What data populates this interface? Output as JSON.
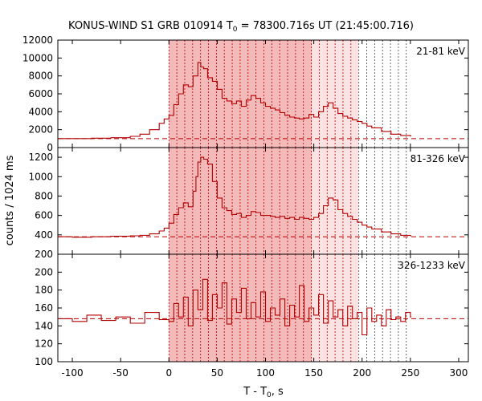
{
  "title": {
    "main": "KONUS-WIND S1 GRB 010914 T",
    "sub": "0",
    "rest": " = 78300.716s UT (21:45:00.716)"
  },
  "ylabel": "counts / 1024 ms",
  "xlabel": {
    "main": "T - T",
    "sub": "0",
    "rest": ", s"
  },
  "colors": {
    "curve": "#b30000",
    "shade_dark": "#f4b9b9",
    "shade_light": "#fbe3e3",
    "dotted": "#b30000",
    "dotted_late": "#444444"
  },
  "chart_data": [
    {
      "type": "line",
      "label": "21-81 keV",
      "x_ticks": [
        "-100",
        "-50",
        "0",
        "50",
        "100",
        "150",
        "200",
        "250",
        "300"
      ],
      "xlim": [
        -115,
        310
      ],
      "ylim": [
        0,
        12000
      ],
      "y_ticks": [
        "0",
        "2000",
        "4000",
        "6000",
        "8000",
        "10000",
        "12000"
      ],
      "background": 1000,
      "x": [
        -115,
        -100,
        -80,
        -60,
        -40,
        -30,
        -20,
        -10,
        -5,
        0,
        5,
        10,
        15,
        20,
        25,
        30,
        33,
        36,
        40,
        45,
        50,
        55,
        60,
        65,
        70,
        75,
        80,
        85,
        90,
        95,
        100,
        105,
        110,
        115,
        120,
        125,
        130,
        135,
        140,
        145,
        150,
        155,
        160,
        165,
        170,
        175,
        180,
        185,
        190,
        195,
        200,
        205,
        210,
        220,
        230,
        240,
        250
      ],
      "y": [
        1000,
        1000,
        1050,
        1100,
        1250,
        1500,
        2000,
        2700,
        3200,
        3600,
        4800,
        6000,
        7000,
        6800,
        8000,
        9500,
        9000,
        8800,
        7800,
        7400,
        6500,
        5500,
        5200,
        4900,
        5200,
        4600,
        5300,
        5800,
        5500,
        5000,
        4600,
        4400,
        4200,
        3900,
        3600,
        3400,
        3300,
        3200,
        3300,
        3700,
        3400,
        4000,
        4600,
        5000,
        4400,
        3800,
        3500,
        3300,
        3100,
        2900,
        2700,
        2400,
        2200,
        1800,
        1500,
        1350,
        1300
      ]
    },
    {
      "type": "line",
      "label": "81-326 keV",
      "x_ticks": [
        "-100",
        "-50",
        "0",
        "50",
        "100",
        "150",
        "200",
        "250",
        "300"
      ],
      "xlim": [
        -115,
        310
      ],
      "ylim": [
        200,
        1300
      ],
      "y_ticks": [
        "200",
        "400",
        "600",
        "800",
        "1000",
        "1200"
      ],
      "background": 380,
      "x": [
        -115,
        -100,
        -80,
        -60,
        -40,
        -30,
        -20,
        -10,
        -5,
        0,
        5,
        10,
        15,
        20,
        25,
        28,
        30,
        33,
        36,
        40,
        45,
        50,
        55,
        60,
        65,
        70,
        75,
        80,
        85,
        90,
        95,
        100,
        105,
        110,
        115,
        120,
        125,
        130,
        135,
        140,
        145,
        150,
        155,
        160,
        165,
        170,
        175,
        180,
        185,
        190,
        195,
        200,
        205,
        210,
        220,
        230,
        240,
        250
      ],
      "y": [
        380,
        375,
        380,
        385,
        390,
        395,
        410,
        440,
        470,
        520,
        610,
        680,
        730,
        690,
        850,
        1000,
        1150,
        1200,
        1180,
        1130,
        950,
        780,
        680,
        650,
        610,
        620,
        580,
        600,
        640,
        630,
        600,
        600,
        590,
        580,
        590,
        570,
        580,
        560,
        580,
        570,
        560,
        580,
        620,
        700,
        780,
        760,
        660,
        620,
        590,
        560,
        530,
        500,
        480,
        460,
        430,
        410,
        395,
        390
      ]
    },
    {
      "type": "line",
      "label": "326-1233 keV",
      "x_ticks": [
        "-100",
        "-50",
        "0",
        "50",
        "100",
        "150",
        "200",
        "250",
        "300"
      ],
      "xlim": [
        -115,
        310
      ],
      "ylim": [
        100,
        220
      ],
      "y_ticks": [
        "100",
        "120",
        "140",
        "160",
        "180",
        "200"
      ],
      "background": 148,
      "x": [
        -115,
        -100,
        -85,
        -70,
        -55,
        -40,
        -25,
        -10,
        0,
        5,
        10,
        15,
        20,
        25,
        30,
        35,
        40,
        45,
        50,
        55,
        60,
        65,
        70,
        75,
        80,
        85,
        90,
        95,
        100,
        105,
        110,
        115,
        120,
        125,
        130,
        135,
        140,
        145,
        150,
        155,
        160,
        165,
        170,
        175,
        180,
        185,
        190,
        195,
        200,
        205,
        210,
        215,
        220,
        225,
        230,
        235,
        240,
        245,
        250
      ],
      "y": [
        148,
        145,
        152,
        146,
        150,
        143,
        155,
        147,
        145,
        165,
        150,
        172,
        140,
        180,
        158,
        192,
        146,
        175,
        160,
        188,
        142,
        170,
        155,
        182,
        148,
        166,
        150,
        178,
        145,
        160,
        152,
        170,
        140,
        163,
        150,
        185,
        145,
        160,
        152,
        175,
        143,
        168,
        150,
        158,
        140,
        162,
        148,
        155,
        130,
        160,
        145,
        152,
        140,
        158,
        147,
        150,
        145,
        155,
        150
      ]
    }
  ]
}
